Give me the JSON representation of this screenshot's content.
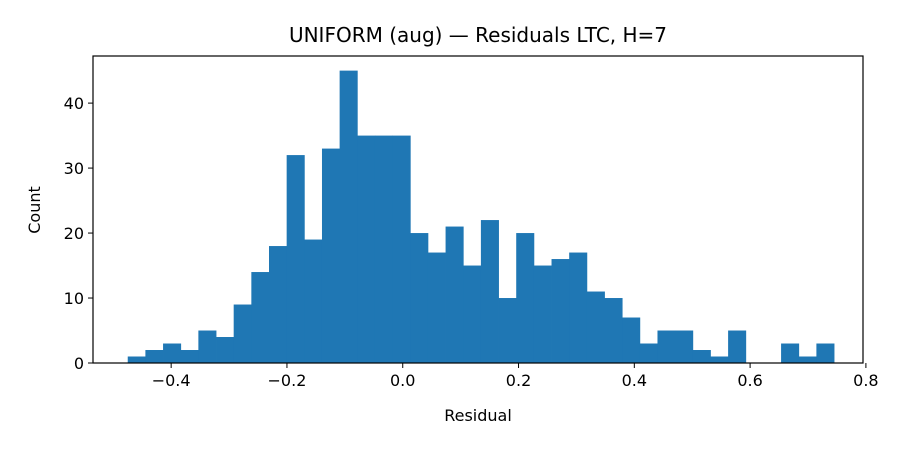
{
  "chart_data": {
    "type": "bar",
    "title": "UNIFORM (aug) — Residuals LTC, H=7",
    "xlabel": "Residual",
    "ylabel": "Count",
    "xlim": [
      -0.535,
      0.795
    ],
    "ylim": [
      0,
      47.25
    ],
    "xticks": [
      -0.4,
      -0.2,
      0.0,
      0.2,
      0.4,
      0.6,
      0.8
    ],
    "xtick_labels": [
      "−0.4",
      "−0.2",
      "0.0",
      "0.2",
      "0.4",
      "0.6",
      "0.8"
    ],
    "yticks": [
      0,
      10,
      20,
      30,
      40
    ],
    "ytick_labels": [
      "0",
      "10",
      "20",
      "30",
      "40"
    ],
    "bin_start": -0.475,
    "bin_width": 0.0305,
    "counts": [
      1,
      2,
      3,
      2,
      5,
      4,
      9,
      14,
      18,
      32,
      19,
      33,
      45,
      35,
      35,
      35,
      20,
      17,
      21,
      15,
      22,
      10,
      20,
      15,
      16,
      17,
      11,
      10,
      7,
      3,
      5,
      5,
      2,
      1,
      5,
      0,
      0,
      3,
      1,
      3
    ],
    "bar_color": "#1f77b4",
    "grid": false,
    "legend": "none"
  }
}
